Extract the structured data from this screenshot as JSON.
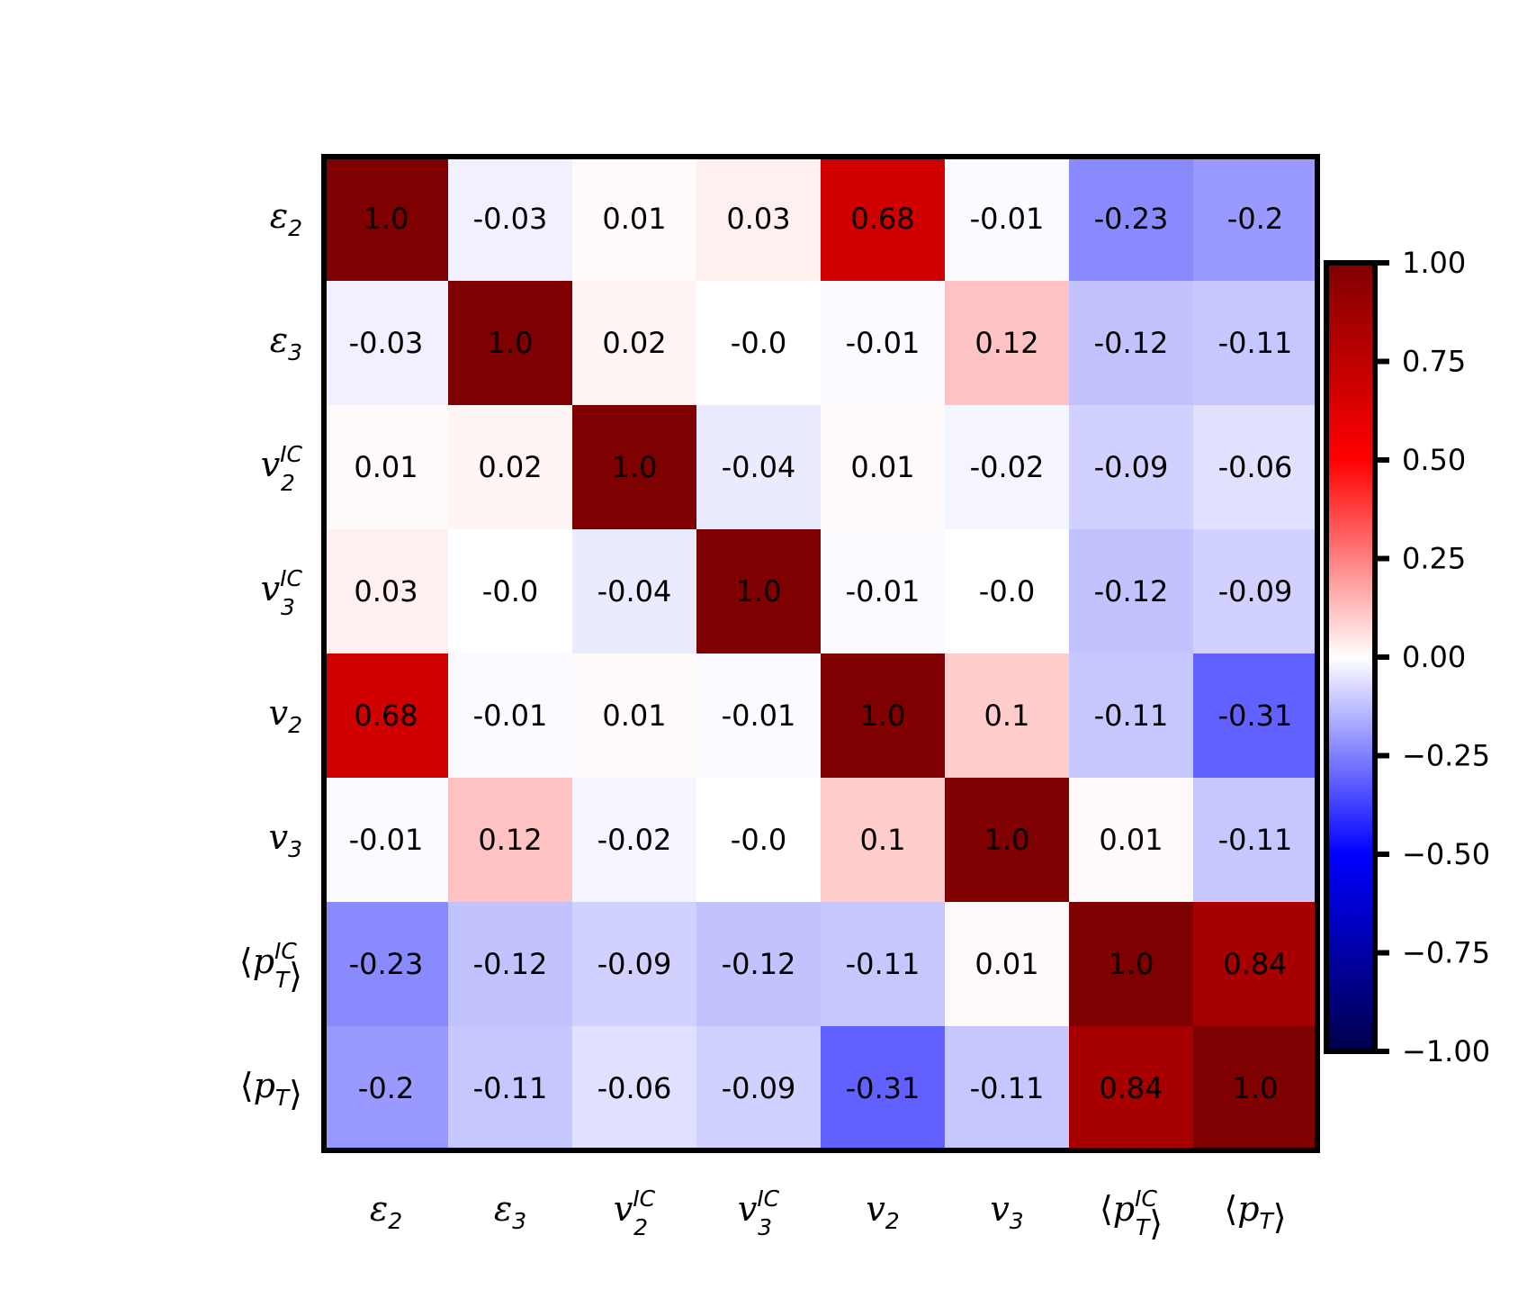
{
  "chart_data": {
    "type": "heatmap",
    "title": "",
    "xlabel": "",
    "ylabel": "",
    "labels": [
      {
        "base": "ε",
        "sub": "2",
        "sup": "",
        "bracket": false
      },
      {
        "base": "ε",
        "sub": "3",
        "sup": "",
        "bracket": false
      },
      {
        "base": "v",
        "sub": "2",
        "sup": "IC",
        "bracket": false
      },
      {
        "base": "v",
        "sub": "3",
        "sup": "IC",
        "bracket": false
      },
      {
        "base": "v",
        "sub": "2",
        "sup": "",
        "bracket": false
      },
      {
        "base": "v",
        "sub": "3",
        "sup": "",
        "bracket": false
      },
      {
        "base": "p",
        "sub": "T",
        "sup": "IC",
        "bracket": true
      },
      {
        "base": "p",
        "sub": "T",
        "sup": "",
        "bracket": true
      }
    ],
    "matrix": [
      [
        1.0,
        -0.03,
        0.01,
        0.03,
        0.68,
        -0.01,
        -0.23,
        -0.2
      ],
      [
        -0.03,
        1.0,
        0.02,
        -0.0,
        -0.01,
        0.12,
        -0.12,
        -0.11
      ],
      [
        0.01,
        0.02,
        1.0,
        -0.04,
        0.01,
        -0.02,
        -0.09,
        -0.06
      ],
      [
        0.03,
        -0.0,
        -0.04,
        1.0,
        -0.01,
        -0.0,
        -0.12,
        -0.09
      ],
      [
        0.68,
        -0.01,
        0.01,
        -0.01,
        1.0,
        0.1,
        -0.11,
        -0.31
      ],
      [
        -0.01,
        0.12,
        -0.02,
        -0.0,
        0.1,
        1.0,
        0.01,
        -0.11
      ],
      [
        -0.23,
        -0.12,
        -0.09,
        -0.12,
        -0.11,
        0.01,
        1.0,
        0.84
      ],
      [
        -0.2,
        -0.11,
        -0.06,
        -0.09,
        -0.31,
        -0.11,
        0.84,
        1.0
      ]
    ],
    "cell_labels": [
      [
        "1.0",
        "-0.03",
        "0.01",
        "0.03",
        "0.68",
        "-0.01",
        "-0.23",
        "-0.2"
      ],
      [
        "-0.03",
        "1.0",
        "0.02",
        "-0.0",
        "-0.01",
        "0.12",
        "-0.12",
        "-0.11"
      ],
      [
        "0.01",
        "0.02",
        "1.0",
        "-0.04",
        "0.01",
        "-0.02",
        "-0.09",
        "-0.06"
      ],
      [
        "0.03",
        "-0.0",
        "-0.04",
        "1.0",
        "-0.01",
        "-0.0",
        "-0.12",
        "-0.09"
      ],
      [
        "0.68",
        "-0.01",
        "0.01",
        "-0.01",
        "1.0",
        "0.1",
        "-0.11",
        "-0.31"
      ],
      [
        "-0.01",
        "0.12",
        "-0.02",
        "-0.0",
        "0.1",
        "1.0",
        "0.01",
        "-0.11"
      ],
      [
        "-0.23",
        "-0.12",
        "-0.09",
        "-0.12",
        "-0.11",
        "0.01",
        "1.0",
        "0.84"
      ],
      [
        "-0.2",
        "-0.11",
        "-0.06",
        "-0.09",
        "-0.31",
        "-0.11",
        "0.84",
        "1.0"
      ]
    ],
    "colormap": "seismic",
    "vmin": -1.0,
    "vmax": 1.0,
    "colorbar": {
      "ticks": [
        1.0,
        0.75,
        0.5,
        0.25,
        0.0,
        -0.25,
        -0.5,
        -0.75,
        -1.0
      ],
      "tick_labels": [
        "1.00",
        "0.75",
        "0.50",
        "0.25",
        "0.00",
        "−0.25",
        "−0.50",
        "−0.75",
        "−1.00"
      ],
      "placement": "right"
    },
    "grid": false
  },
  "colors": {
    "text": "#000000",
    "frame": "#000000"
  }
}
